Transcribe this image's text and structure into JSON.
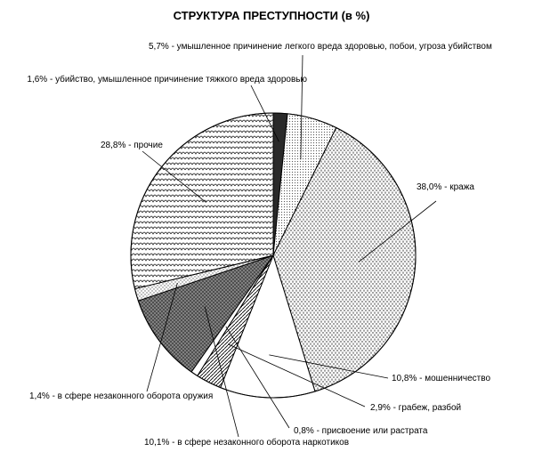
{
  "chart_data": {
    "type": "pie",
    "title": "СТРУКТУРА ПРЕСТУПНОСТИ  (в %)",
    "start": "top",
    "direction": "clockwise",
    "slices": [
      {
        "label": "1,6% - убийство, умышленное причинение тяжкого вреда здоровью",
        "value": 1.6,
        "pattern": "solid-dark"
      },
      {
        "label": "5,7% - умышленное причинение легкого вреда здоровью, побои, угроза убийством",
        "value": 5.7,
        "pattern": "fine-dots"
      },
      {
        "label": "38,0% - кража",
        "value": 38.0,
        "pattern": "dense-dashes"
      },
      {
        "label": "10,8% - мошенничество",
        "value": 10.8,
        "pattern": "white"
      },
      {
        "label": "2,9% - грабеж, разбой",
        "value": 2.9,
        "pattern": "diagonal"
      },
      {
        "label": "0,8% - присвоение или растрата",
        "value": 0.8,
        "pattern": "white"
      },
      {
        "label": "10,1% - в сфере незаконного оборота наркотиков",
        "value": 10.1,
        "pattern": "dark-cross"
      },
      {
        "label": "1,4% - в сфере незаконного оборота оружия",
        "value": 1.4,
        "pattern": "dots"
      },
      {
        "label": "28,8% - прочие",
        "value": 28.8,
        "pattern": "scale-arcs"
      }
    ]
  }
}
